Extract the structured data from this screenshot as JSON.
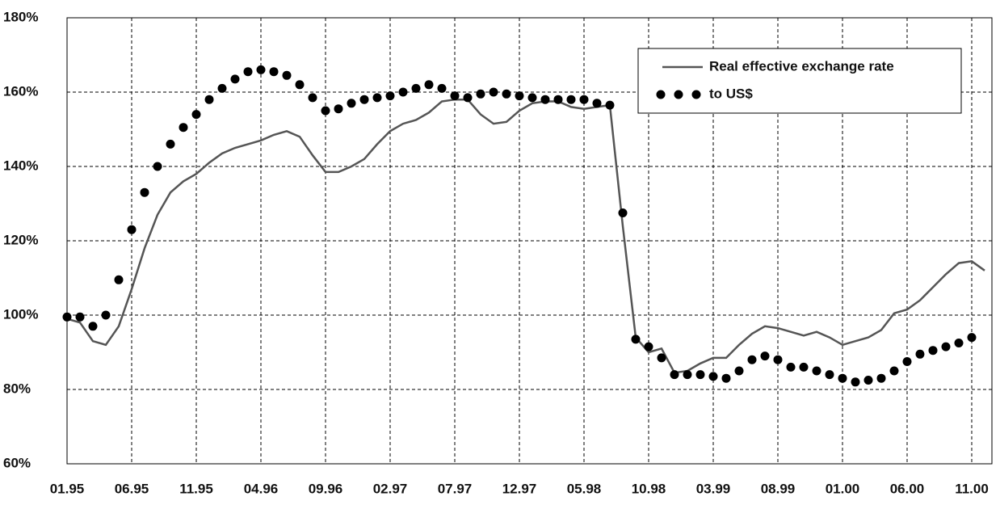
{
  "chart_data": {
    "type": "line",
    "categories": [
      "01.95",
      null,
      null,
      null,
      null,
      "06.95",
      null,
      null,
      null,
      null,
      "11.95",
      null,
      null,
      null,
      null,
      "04.96",
      null,
      null,
      null,
      null,
      "09.96",
      null,
      null,
      null,
      null,
      "02.97",
      null,
      null,
      null,
      null,
      "07.97",
      null,
      null,
      null,
      null,
      "12.97",
      null,
      null,
      null,
      null,
      "05.98",
      null,
      null,
      null,
      null,
      "10.98",
      null,
      null,
      null,
      null,
      "03.99",
      null,
      null,
      null,
      null,
      "08.99",
      null,
      null,
      null,
      null,
      "01.00",
      null,
      null,
      null,
      null,
      "06.00",
      null,
      null,
      null,
      null,
      "11.00",
      null
    ],
    "series": [
      {
        "name": "Real effective exchange rate",
        "color": "#555555",
        "style": "line",
        "values": [
          99,
          98,
          93,
          92,
          97,
          107,
          118,
          127,
          133,
          136,
          138,
          141,
          143.5,
          145,
          146,
          147,
          148.5,
          149.5,
          148,
          143,
          138.5,
          138.5,
          140,
          142,
          146,
          149.5,
          151.5,
          152.5,
          154.5,
          157.5,
          158,
          158,
          154,
          151.5,
          152,
          155,
          157,
          157.5,
          157.5,
          156,
          155.5,
          156,
          156.5,
          124,
          94,
          90,
          91,
          84.5,
          85,
          87,
          88.5,
          88.5,
          92,
          95,
          97,
          96.5,
          95.5,
          94.5,
          95.5,
          94,
          92,
          93,
          94,
          96,
          100.5,
          101.5,
          104,
          107.5,
          111,
          114,
          114.5,
          112
        ]
      },
      {
        "name": "to US$",
        "color": "#000000",
        "style": "dots",
        "values": [
          99.5,
          99.5,
          97,
          100,
          109.5,
          123,
          133,
          140,
          146,
          150.5,
          154,
          158,
          161,
          163.5,
          165.5,
          166,
          165.5,
          164.5,
          162,
          158.5,
          155,
          155.5,
          157,
          158,
          158.5,
          159,
          160,
          161,
          162,
          161,
          159,
          158.5,
          159.5,
          160,
          159.5,
          159,
          158.5,
          158,
          158,
          158,
          158,
          157,
          156.5,
          127.5,
          93.5,
          91.5,
          88.5,
          84,
          84,
          84,
          83.5,
          83,
          85,
          88,
          89,
          88,
          86,
          86,
          85,
          84,
          83,
          82,
          82.5,
          83,
          85,
          87.5,
          89.5,
          90.5,
          91.5,
          92.5,
          94,
          null
        ]
      }
    ],
    "ylim": [
      60,
      180
    ],
    "yticks": [
      {
        "value": 60,
        "label": "60%"
      },
      {
        "value": 80,
        "label": "80%"
      },
      {
        "value": 100,
        "label": "100%"
      },
      {
        "value": 120,
        "label": "120%"
      },
      {
        "value": 140,
        "label": "140%"
      },
      {
        "value": 160,
        "label": "160%"
      },
      {
        "value": 180,
        "label": "180%"
      }
    ],
    "grid": true,
    "legend": "top-right"
  }
}
